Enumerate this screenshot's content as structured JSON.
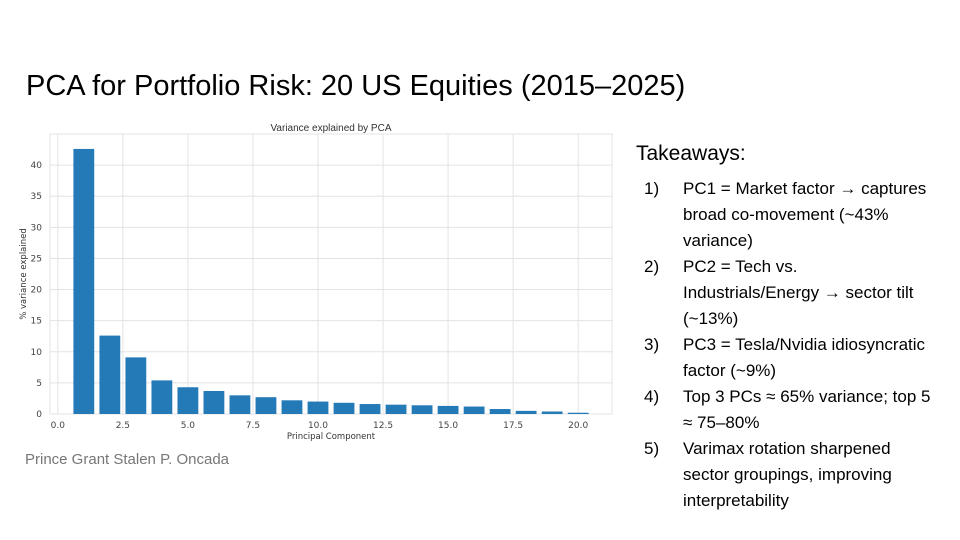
{
  "slide": {
    "title": "PCA for Portfolio Risk: 20 US Equities (2015–2025)",
    "author": "Prince Grant Stalen P. Oncada"
  },
  "takeaways": {
    "heading": "Takeaways:",
    "items": [
      {
        "num": "1)",
        "text": "PC1 = Market factor → captures broad co-movement (~43% variance)"
      },
      {
        "num": "2)",
        "text": "PC2 = Tech vs. Industrials/Energy → sector tilt (~13%)"
      },
      {
        "num": "3)",
        "text": "PC3 = Tesla/Nvidia idiosyncratic factor (~9%)"
      },
      {
        "num": "4)",
        "text": "Top 3 PCs ≈ 65% variance; top 5 ≈ 75–80%"
      },
      {
        "num": "5)",
        "text": "Varimax rotation sharpened sector groupings, improving interpretability"
      }
    ]
  },
  "chart_data": {
    "type": "bar",
    "title": "Variance explained by PCA",
    "xlabel": "Principal Component",
    "ylabel": "% variance explained",
    "x": [
      1,
      2,
      3,
      4,
      5,
      6,
      7,
      8,
      9,
      10,
      11,
      12,
      13,
      14,
      15,
      16,
      17,
      18,
      19,
      20
    ],
    "values": [
      42.6,
      12.6,
      9.1,
      5.4,
      4.3,
      3.7,
      3.0,
      2.7,
      2.2,
      2.0,
      1.8,
      1.6,
      1.5,
      1.4,
      1.3,
      1.2,
      0.8,
      0.5,
      0.4,
      0.2
    ],
    "xlim": [
      -0.3,
      21.3
    ],
    "ylim": [
      0,
      45
    ],
    "xticks": [
      0.0,
      2.5,
      5.0,
      7.5,
      10.0,
      12.5,
      15.0,
      17.5,
      20.0
    ],
    "xtick_labels": [
      "0.0",
      "2.5",
      "5.0",
      "7.5",
      "10.0",
      "12.5",
      "15.0",
      "17.5",
      "20.0"
    ],
    "yticks": [
      0,
      5,
      10,
      15,
      20,
      25,
      30,
      35,
      40
    ],
    "ytick_labels": [
      "0",
      "5",
      "10",
      "15",
      "20",
      "25",
      "30",
      "35",
      "40"
    ],
    "grid": true,
    "bar_color": "#2479b7",
    "grid_color": "#e3e3e3"
  }
}
